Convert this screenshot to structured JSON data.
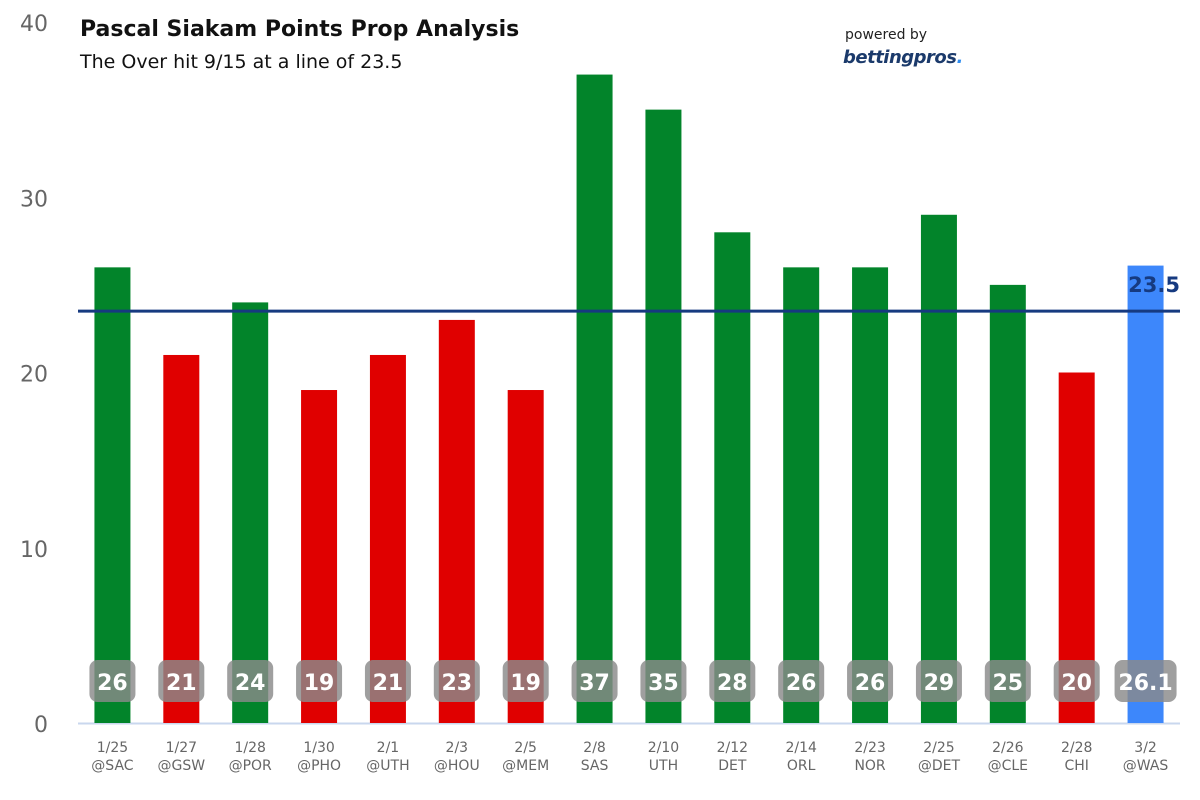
{
  "header": {
    "title": "Pascal Siakam Points Prop Analysis",
    "subtitle": "The Over hit 9/15 at a line of 23.5"
  },
  "branding": {
    "powered_by": "powered by",
    "brand_name": "bettingpros",
    "brand_dot": "."
  },
  "colors": {
    "over": "#02842a",
    "under": "#e00000",
    "projection": "#3d87fb",
    "line": "#163a80",
    "axis_text": "#666666",
    "label_badge": "#8a8a8a"
  },
  "chart_data": {
    "type": "bar",
    "title": "Pascal Siakam Points Prop Analysis",
    "subtitle": "The Over hit 9/15 at a line of 23.5",
    "xlabel": "",
    "ylabel": "",
    "ylim": [
      0,
      40
    ],
    "yticks": [
      0,
      10,
      20,
      30,
      40
    ],
    "grid": false,
    "reference_line": {
      "value": 23.5,
      "label": "23.5"
    },
    "categories": [
      {
        "date": "1/25",
        "opp": "@SAC"
      },
      {
        "date": "1/27",
        "opp": "@GSW"
      },
      {
        "date": "1/28",
        "opp": "@POR"
      },
      {
        "date": "1/30",
        "opp": "@PHO"
      },
      {
        "date": "2/1",
        "opp": "@UTH"
      },
      {
        "date": "2/3",
        "opp": "@HOU"
      },
      {
        "date": "2/5",
        "opp": "@MEM"
      },
      {
        "date": "2/8",
        "opp": "SAS"
      },
      {
        "date": "2/10",
        "opp": "UTH"
      },
      {
        "date": "2/12",
        "opp": "DET"
      },
      {
        "date": "2/14",
        "opp": "ORL"
      },
      {
        "date": "2/23",
        "opp": "NOR"
      },
      {
        "date": "2/25",
        "opp": "@DET"
      },
      {
        "date": "2/26",
        "opp": "@CLE"
      },
      {
        "date": "2/28",
        "opp": "CHI"
      },
      {
        "date": "3/2",
        "opp": "@WAS"
      }
    ],
    "values": [
      26,
      21,
      24,
      19,
      21,
      23,
      19,
      37,
      35,
      28,
      26,
      26,
      29,
      25,
      20,
      26.1
    ],
    "labels": [
      "26",
      "21",
      "24",
      "19",
      "21",
      "23",
      "19",
      "37",
      "35",
      "28",
      "26",
      "26",
      "29",
      "25",
      "20",
      "26.1"
    ],
    "status": [
      "over",
      "under",
      "over",
      "under",
      "under",
      "under",
      "under",
      "over",
      "over",
      "over",
      "over",
      "over",
      "over",
      "over",
      "under",
      "projection"
    ]
  }
}
